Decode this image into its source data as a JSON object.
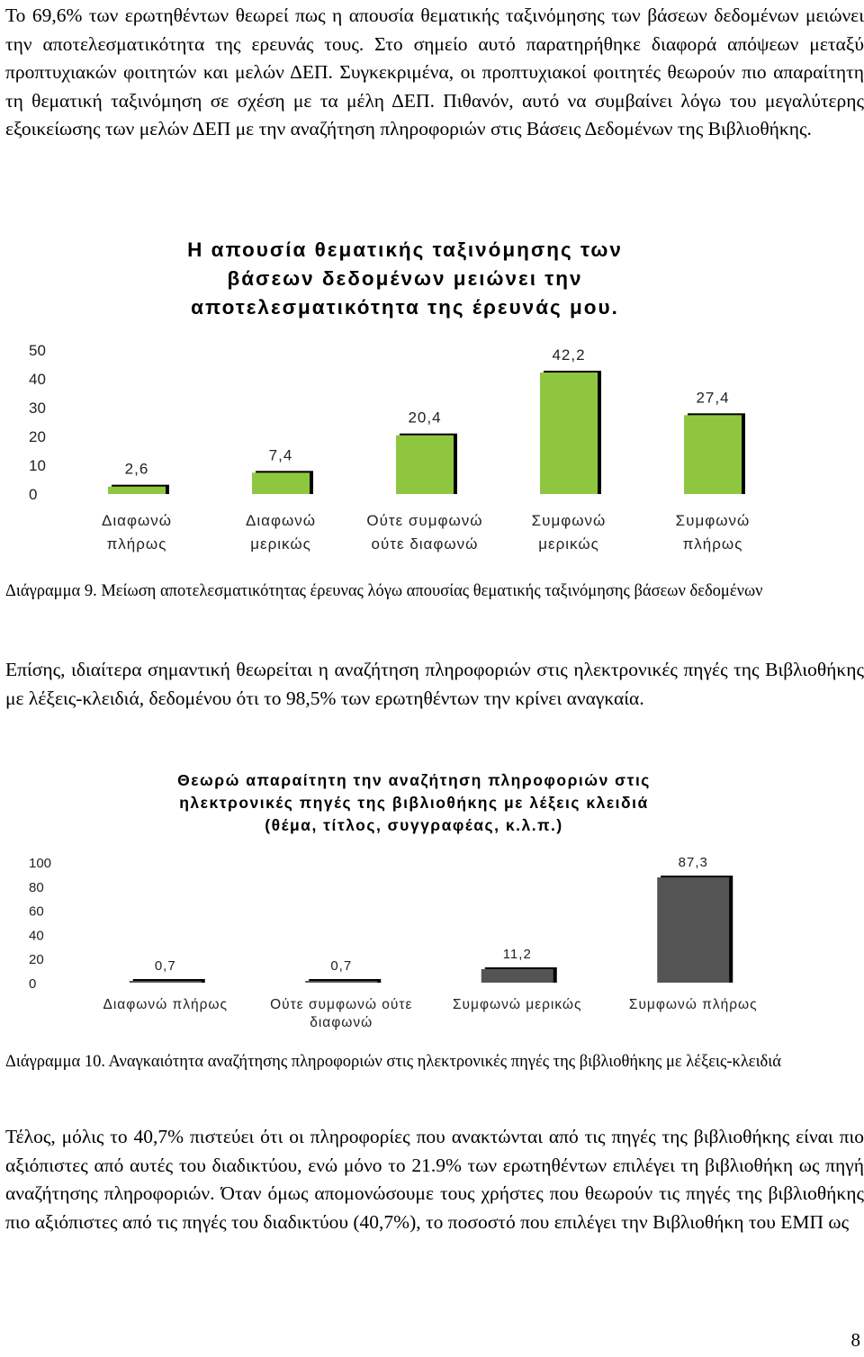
{
  "paragraphs": {
    "intro": "Το 69,6% των ερωτηθέντων θεωρεί πως η απουσία θεματικής ταξινόμησης των βάσεων δεδομένων μειώνει την αποτελεσματικότητα της ερευνάς τους. Στο σημείο αυτό παρατηρήθηκε διαφορά απόψεων μεταξύ προπτυχιακών φοιτητών και μελών ΔΕΠ. Συγκεκριμένα, οι προπτυχιακοί φοιτητές θεωρούν πιο απαραίτητη τη θεματική ταξινόμηση σε σχέση με τα μέλη ΔΕΠ. Πιθανόν, αυτό να συμβαίνει λόγω του μεγαλύτερης εξοικείωσης των μελών ΔΕΠ με την αναζήτηση πληροφοριών στις Βάσεις Δεδομένων της Βιβλιοθήκης.",
    "middle": "Επίσης, ιδιαίτερα σημαντική θεωρείται η αναζήτηση πληροφοριών στις ηλεκτρονικές πηγές της Βιβλιοθήκης με λέξεις-κλειδιά, δεδομένου ότι το 98,5% των ερωτηθέντων την κρίνει αναγκαία.",
    "closing": "Τέλος, μόλις το 40,7% πιστεύει ότι οι πληροφορίες που ανακτώνται από τις πηγές της βιβλιοθήκης είναι πιο αξιόπιστες από αυτές του διαδικτύου, ενώ μόνο το 21.9% των ερωτηθέντων επιλέγει τη βιβλιοθήκη ως πηγή αναζήτησης πληροφοριών. Όταν όμως απομονώσουμε τους χρήστες που θεωρούν τις πηγές της βιβλιοθήκης πιο αξιόπιστες από τις πηγές του διαδικτύου (40,7%), το ποσοστό που επιλέγει την Βιβλιοθήκη του ΕΜΠ ως"
  },
  "captions": {
    "diagram9": "Διάγραμμα 9. Μείωση αποτελεσματικότητας έρευνας λόγω απουσίας θεματικής ταξινόμησης βάσεων δεδομένων",
    "diagram10": "Διάγραμμα 10. Αναγκαιότητα αναζήτησης πληροφοριών στις ηλεκτρονικές πηγές της βιβλιοθήκης με λέξεις-κλειδιά"
  },
  "page_number": "8",
  "colors": {
    "bar_chart1": "#8fc640",
    "bar_chart2": "#545454",
    "bar_shadow": "#000000",
    "axis_text": "#222222"
  },
  "chart_data": [
    {
      "type": "bar",
      "title_lines": [
        "Η απουσία θεματικής ταξινόμησης των",
        "βάσεων δεδομένων μειώνει την",
        "αποτελεσματικότητα της έρευνάς μου."
      ],
      "categories": [
        [
          "Διαφωνώ",
          "πλήρως"
        ],
        [
          "Διαφωνώ",
          "μερικώς"
        ],
        [
          "Ούτε συμφωνώ",
          "ούτε διαφωνώ"
        ],
        [
          "Συμφωνώ",
          "μερικώς"
        ],
        [
          "Συμφωνώ",
          "πλήρως"
        ]
      ],
      "values": [
        2.6,
        7.4,
        20.4,
        42.2,
        27.4
      ],
      "value_labels": [
        "2,6",
        "7,4",
        "20,4",
        "42,2",
        "27,4"
      ],
      "y_ticks": [
        0,
        10,
        20,
        30,
        40,
        50
      ],
      "ylim": [
        0,
        50
      ],
      "grid": false,
      "legend": "none"
    },
    {
      "type": "bar",
      "title_lines": [
        "Θεωρώ απαραίτητη την αναζήτηση πληροφοριών στις",
        "ηλεκτρονικές πηγές της βιβλιοθήκης με λέξεις κλειδιά",
        "(θέμα, τίτλος, συγγραφέας, κ.λ.π.)"
      ],
      "categories": [
        [
          "Διαφωνώ πλήρως"
        ],
        [
          "Ούτε συμφωνώ ούτε",
          "διαφωνώ"
        ],
        [
          "Συμφωνώ μερικώς"
        ],
        [
          "Συμφωνώ πλήρως"
        ]
      ],
      "values": [
        0.7,
        0.7,
        11.2,
        87.3
      ],
      "value_labels": [
        "0,7",
        "0,7",
        "11,2",
        "87,3"
      ],
      "y_ticks": [
        0,
        20,
        40,
        60,
        80,
        100
      ],
      "ylim": [
        0,
        100
      ],
      "grid": false,
      "legend": "none"
    }
  ]
}
